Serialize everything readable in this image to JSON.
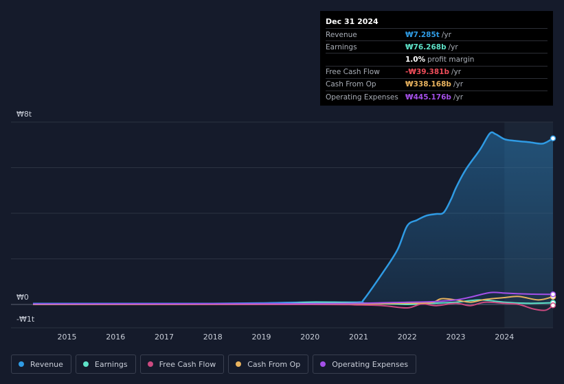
{
  "tooltip": {
    "date": "Dec 31 2024",
    "rows": [
      {
        "label": "Revenue",
        "value": "₩7.285t",
        "unit": "/yr",
        "color": "#2f9be4"
      },
      {
        "label": "Earnings",
        "value": "₩76.268b",
        "unit": "/yr",
        "color": "#5ee2c8"
      },
      {
        "label": "",
        "value": "1.0%",
        "unit": "profit margin",
        "color": "#ffffff"
      },
      {
        "label": "Free Cash Flow",
        "value": "-₩39.381b",
        "unit": "/yr",
        "color": "#ef4d5a"
      },
      {
        "label": "Cash From Op",
        "value": "₩338.168b",
        "unit": "/yr",
        "color": "#e9b35e"
      },
      {
        "label": "Operating Expenses",
        "value": "₩445.176b",
        "unit": "/yr",
        "color": "#a450e8"
      }
    ]
  },
  "legend": [
    {
      "label": "Revenue",
      "color": "#2f9be4"
    },
    {
      "label": "Earnings",
      "color": "#5ee2c8"
    },
    {
      "label": "Free Cash Flow",
      "color": "#cc4a80"
    },
    {
      "label": "Cash From Op",
      "color": "#e9b35e"
    },
    {
      "label": "Operating Expenses",
      "color": "#a450e8"
    }
  ],
  "chart_data": {
    "type": "line",
    "y_tick_labels": [
      "₩8t",
      "₩0",
      "-₩1t"
    ],
    "x_tick_labels": [
      "2015",
      "2016",
      "2017",
      "2018",
      "2019",
      "2020",
      "2021",
      "2022",
      "2023",
      "2024"
    ],
    "ylim": [
      -1,
      8
    ],
    "xlim": [
      2014.3,
      2025.0
    ],
    "grid": true,
    "highlight_from": 2024.0,
    "series": [
      {
        "name": "Revenue",
        "color": "#2f9be4",
        "fill": true,
        "points": [
          [
            2014.3,
            0.04
          ],
          [
            2015,
            0.04
          ],
          [
            2016,
            0.04
          ],
          [
            2017,
            0.04
          ],
          [
            2018,
            0.04
          ],
          [
            2019,
            0.06
          ],
          [
            2020,
            0.1
          ],
          [
            2021,
            0.1
          ],
          [
            2021.1,
            0.2
          ],
          [
            2021.5,
            1.4
          ],
          [
            2021.8,
            2.4
          ],
          [
            2022.0,
            3.45
          ],
          [
            2022.2,
            3.7
          ],
          [
            2022.4,
            3.9
          ],
          [
            2022.6,
            3.97
          ],
          [
            2022.75,
            4.03
          ],
          [
            2022.9,
            4.6
          ],
          [
            2023.0,
            5.1
          ],
          [
            2023.2,
            5.9
          ],
          [
            2023.5,
            6.8
          ],
          [
            2023.7,
            7.5
          ],
          [
            2023.82,
            7.47
          ],
          [
            2024.0,
            7.25
          ],
          [
            2024.2,
            7.18
          ],
          [
            2024.5,
            7.12
          ],
          [
            2024.75,
            7.05
          ],
          [
            2024.85,
            7.1
          ],
          [
            2025.0,
            7.285
          ]
        ]
      },
      {
        "name": "Earnings",
        "color": "#5ee2c8",
        "fill": false,
        "points": [
          [
            2014.3,
            0.0
          ],
          [
            2019,
            0.02
          ],
          [
            2020,
            0.1
          ],
          [
            2021,
            0.07
          ],
          [
            2022,
            0.0
          ],
          [
            2022.5,
            0.05
          ],
          [
            2023,
            0.1
          ],
          [
            2023.5,
            0.2
          ],
          [
            2024,
            0.1
          ],
          [
            2024.5,
            0.05
          ],
          [
            2025.0,
            0.076
          ]
        ]
      },
      {
        "name": "Free Cash Flow",
        "color": "#cc4a80",
        "fill": false,
        "points": [
          [
            2014.3,
            0.0
          ],
          [
            2020,
            0.0
          ],
          [
            2021,
            -0.02
          ],
          [
            2021.5,
            -0.05
          ],
          [
            2022.0,
            -0.15
          ],
          [
            2022.3,
            0.02
          ],
          [
            2022.6,
            -0.05
          ],
          [
            2023.0,
            0.05
          ],
          [
            2023.3,
            -0.05
          ],
          [
            2023.6,
            0.1
          ],
          [
            2024.0,
            0.05
          ],
          [
            2024.3,
            0.0
          ],
          [
            2024.6,
            -0.2
          ],
          [
            2024.85,
            -0.25
          ],
          [
            2025.0,
            -0.039
          ]
        ]
      },
      {
        "name": "Cash From Op",
        "color": "#e9b35e",
        "fill": false,
        "points": [
          [
            2014.3,
            0.0
          ],
          [
            2020,
            0.03
          ],
          [
            2021,
            0.03
          ],
          [
            2022,
            0.05
          ],
          [
            2022.5,
            0.08
          ],
          [
            2022.7,
            0.25
          ],
          [
            2023.0,
            0.2
          ],
          [
            2023.3,
            0.1
          ],
          [
            2023.6,
            0.22
          ],
          [
            2024.0,
            0.3
          ],
          [
            2024.3,
            0.35
          ],
          [
            2024.7,
            0.2
          ],
          [
            2025.0,
            0.338
          ]
        ]
      },
      {
        "name": "Operating Expenses",
        "color": "#a450e8",
        "fill": false,
        "points": [
          [
            2014.3,
            0.02
          ],
          [
            2020,
            0.04
          ],
          [
            2021,
            0.05
          ],
          [
            2022,
            0.1
          ],
          [
            2022.5,
            0.12
          ],
          [
            2023.0,
            0.2
          ],
          [
            2023.3,
            0.32
          ],
          [
            2023.7,
            0.52
          ],
          [
            2024.0,
            0.5
          ],
          [
            2024.3,
            0.47
          ],
          [
            2024.6,
            0.45
          ],
          [
            2025.0,
            0.445
          ]
        ]
      }
    ]
  }
}
